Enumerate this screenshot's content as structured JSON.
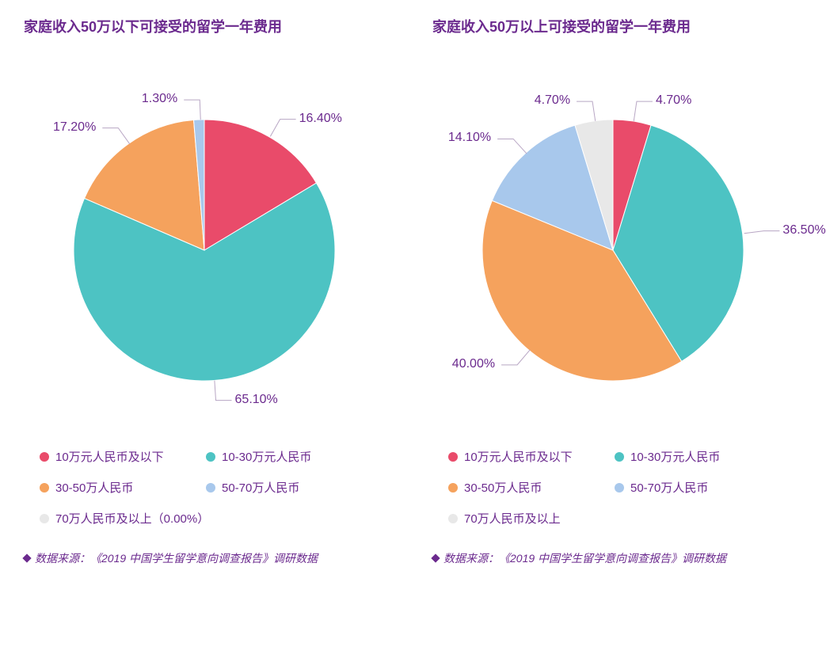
{
  "global": {
    "title_color": "#6b2a8e",
    "title_fontsize": 18,
    "label_color": "#6b2a8e",
    "label_fontsize": 16,
    "legend_text_color": "#6b2a8e",
    "legend_fontsize": 15,
    "source_color": "#6b2a8e",
    "source_fontsize": 14,
    "leader_color": "#b8a6c4",
    "background_color": "#ffffff"
  },
  "categories": [
    {
      "key": "a",
      "label": "10万元人民币及以下",
      "color": "#e94b6a"
    },
    {
      "key": "b",
      "label": "10-30万元人民币",
      "color": "#4dc3c3"
    },
    {
      "key": "c",
      "label": "30-50万人民币",
      "color": "#f5a25d"
    },
    {
      "key": "d",
      "label": "50-70万人民币",
      "color": "#a8c8ec"
    },
    {
      "key": "e",
      "label": "70万人民币及以上",
      "color": "#e8e8e8"
    }
  ],
  "charts": [
    {
      "title": "家庭收入50万以下可接受的留学一年费用",
      "pie_radius": 165,
      "start_angle_deg": -90,
      "slices": [
        {
          "cat": "a",
          "value": 16.4,
          "label": "16.40%"
        },
        {
          "cat": "b",
          "value": 65.1,
          "label": "65.10%"
        },
        {
          "cat": "c",
          "value": 17.2,
          "label": "17.20%"
        },
        {
          "cat": "d",
          "value": 1.3,
          "label": "1.30%"
        },
        {
          "cat": "e",
          "value": 0.0,
          "label": null
        }
      ],
      "legend_extra": {
        "e": "70万人民币及以上（0.00%）"
      },
      "source": "数据来源：《2019 中国学生留学意向调查报告》调研数据"
    },
    {
      "title": "家庭收入50万以上可接受的留学一年费用",
      "pie_radius": 165,
      "start_angle_deg": -90,
      "slices": [
        {
          "cat": "a",
          "value": 4.7,
          "label": "4.70%"
        },
        {
          "cat": "b",
          "value": 36.5,
          "label": "36.50%"
        },
        {
          "cat": "c",
          "value": 40.0,
          "label": "40.00%"
        },
        {
          "cat": "d",
          "value": 14.1,
          "label": "14.10%"
        },
        {
          "cat": "e",
          "value": 4.7,
          "label": "4.70%"
        }
      ],
      "legend_extra": {},
      "source": "数据来源：《2019 中国学生留学意向调查报告》调研数据"
    }
  ]
}
